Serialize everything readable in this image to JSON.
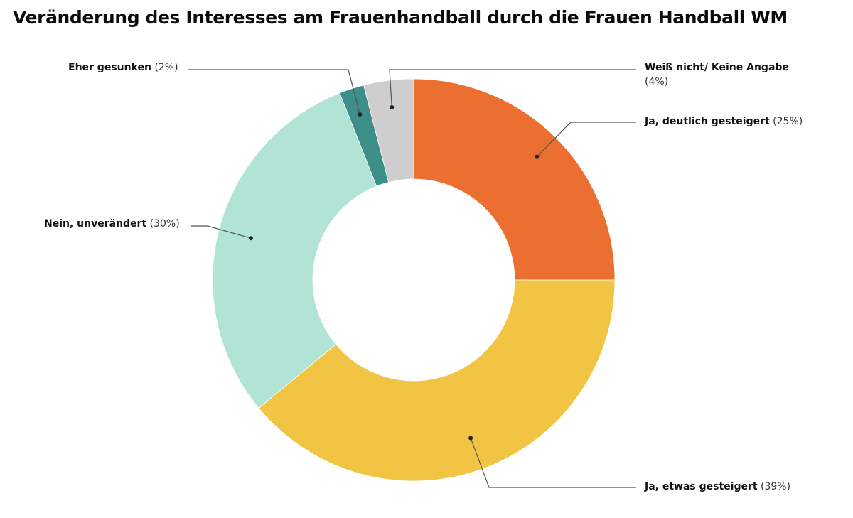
{
  "chart_data": {
    "type": "pie",
    "variant": "donut",
    "title": "Veränderung des Interesses am Frauenhandball durch die Frauen Handball WM",
    "slices": [
      {
        "label": "Ja, deutlich gesteigert",
        "value": 25,
        "pct_text": "(25%)",
        "color": "#ea6f30"
      },
      {
        "label": "Ja, etwas gesteigert",
        "value": 39,
        "pct_text": "(39%)",
        "color": "#f2c443"
      },
      {
        "label": "Nein, unverändert",
        "value": 30,
        "pct_text": "(30%)",
        "color": "#b2e4d6"
      },
      {
        "label": "Eher gesunken",
        "value": 2,
        "pct_text": "(2%)",
        "color": "#3e8e8a"
      },
      {
        "label": "Weiß nicht/ Keine Angabe",
        "value": 4,
        "pct_text": "(4%)",
        "color": "#cecece"
      }
    ],
    "start_angle": "12 o'clock",
    "direction": "clockwise",
    "legend": "callout-labels"
  }
}
